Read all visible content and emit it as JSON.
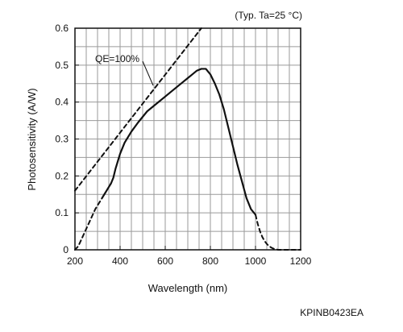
{
  "chart_data": {
    "type": "line",
    "title": "",
    "xlabel": "Wavelength (nm)",
    "ylabel": "Photosensitivity (A/W)",
    "xlim": [
      200,
      1200
    ],
    "ylim": [
      0,
      0.6
    ],
    "x_ticks": [
      200,
      400,
      600,
      800,
      1000,
      1200
    ],
    "y_ticks": [
      0,
      0.1,
      0.2,
      0.3,
      0.4,
      0.5,
      0.6
    ],
    "y_tick_labels": [
      "0",
      "0.1",
      "0.2",
      "0.3",
      "0.4",
      "0.5",
      "0.6"
    ],
    "grid": true,
    "conditions_note": "(Typ. Ta=25 °C)",
    "annotations": [
      {
        "text": "QE=100%",
        "target": "qe-reference-line"
      }
    ],
    "figure_code": "KPINB0423EA",
    "series": [
      {
        "role": "qe-reference-line",
        "style": "dashed",
        "x": [
          200,
          760
        ],
        "y": [
          0.16,
          0.6
        ]
      },
      {
        "role": "response-short-wave-dashed",
        "style": "dashed",
        "x": [
          200,
          215,
          230,
          245,
          260,
          275,
          290,
          300,
          310,
          320
        ],
        "y": [
          0.0,
          0.01,
          0.03,
          0.05,
          0.07,
          0.09,
          0.11,
          0.12,
          0.13,
          0.14
        ]
      },
      {
        "role": "response-solid",
        "style": "solid",
        "x": [
          320,
          330,
          340,
          350,
          360,
          370,
          380,
          390,
          400,
          420,
          450,
          480,
          500,
          520,
          550,
          580,
          600,
          620,
          650,
          680,
          700,
          720,
          740,
          760,
          780,
          800,
          820,
          840,
          860,
          880,
          900,
          920,
          940,
          960,
          980,
          1000
        ],
        "y": [
          0.14,
          0.15,
          0.16,
          0.17,
          0.18,
          0.195,
          0.22,
          0.24,
          0.26,
          0.29,
          0.32,
          0.345,
          0.36,
          0.375,
          0.39,
          0.405,
          0.415,
          0.425,
          0.44,
          0.455,
          0.465,
          0.475,
          0.485,
          0.49,
          0.49,
          0.475,
          0.45,
          0.42,
          0.38,
          0.33,
          0.28,
          0.23,
          0.185,
          0.14,
          0.11,
          0.095
        ]
      },
      {
        "role": "response-long-wave-dashed",
        "style": "dashed",
        "x": [
          1000,
          1010,
          1020,
          1030,
          1040,
          1050,
          1060,
          1070,
          1080,
          1090,
          1100,
          1120,
          1140,
          1160,
          1180,
          1200
        ],
        "y": [
          0.095,
          0.07,
          0.05,
          0.035,
          0.024,
          0.016,
          0.01,
          0.006,
          0.003,
          0.0015,
          0.0,
          0.0,
          0.0,
          0.0,
          0.0,
          0.0
        ]
      }
    ]
  }
}
